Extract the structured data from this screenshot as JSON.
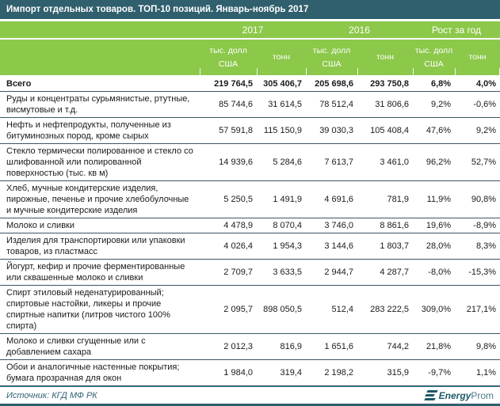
{
  "title": "Импорт отдельных товаров. ТОП-10 позиций. Январь-ноябрь 2017",
  "header": {
    "group_2017": "2017",
    "group_2016": "2016",
    "group_growth": "Рост за год",
    "sub_usd": "тыс. долл\nСША",
    "sub_tons": "тонн"
  },
  "chart_data": {
    "type": "table",
    "title": "Импорт отдельных товаров. ТОП-10 позиций. Январь-ноябрь 2017",
    "columns": [
      "",
      "2017 тыс. долл США",
      "2017 тонн",
      "2016 тыс. долл США",
      "2016 тонн",
      "Рост за год тыс. долл США",
      "Рост за год тонн"
    ],
    "totals_row_index": 0,
    "rows": [
      [
        "Всего",
        "219 764,5",
        "305 406,7",
        "205 698,6",
        "293 750,8",
        "6,8%",
        "4,0%"
      ],
      [
        "Руды и концентраты сурьмянистые, ртутные, висмутовые и т.д.",
        "85 744,6",
        "31 614,5",
        "78 512,4",
        "31 806,6",
        "9,2%",
        "-0,6%"
      ],
      [
        "Нефть и нефтепродукты, полученные из битуминозных пород, кроме сырых",
        "57 591,8",
        "115 150,9",
        "39 030,3",
        "105 408,4",
        "47,6%",
        "9,2%"
      ],
      [
        "Стекло термически полированное и стекло со шлифованной или полированной поверхностью (тыс. кв м)",
        "14 939,6",
        "5 284,6",
        "7 613,7",
        "3 461,0",
        "96,2%",
        "52,7%"
      ],
      [
        "Хлеб, мучные кондитерские изделия, пирожные, печенье и прочие хлебобулочные и мучные кондитерские изделия",
        "5 250,5",
        "1 491,9",
        "4 691,6",
        "781,9",
        "11,9%",
        "90,8%"
      ],
      [
        "Молоко и сливки",
        "4 478,9",
        "8 070,4",
        "3 746,0",
        "8 861,6",
        "19,6%",
        "-8,9%"
      ],
      [
        "Изделия для транспортировки или упаковки товаров, из пластмасс",
        "4 026,4",
        "1 954,3",
        "3 144,6",
        "1 803,7",
        "28,0%",
        "8,3%"
      ],
      [
        "Йогурт, кефир и прочие ферментированные или сквашенные молоко и сливки",
        "2 709,7",
        "3 633,5",
        "2 944,7",
        "4 287,7",
        "-8,0%",
        "-15,3%"
      ],
      [
        "Спирт этиловый неденатурированный; спиртовые настойки, ликеры и прочие спиртные напитки (литров чистого 100% спирта)",
        "2 095,7",
        "898 050,5",
        "512,4",
        "283 222,5",
        "309,0%",
        "217,1%"
      ],
      [
        "Молоко и сливки сгущенные или с добавлением сахара",
        "2 012,3",
        "816,9",
        "1 651,6",
        "744,2",
        "21,8%",
        "9,8%"
      ],
      [
        "Обои и аналогичные настенные покрытия; бумага прозрачная для окон",
        "1 984,0",
        "319,4",
        "2 198,2",
        "315,9",
        "-9,7%",
        "1,1%"
      ]
    ]
  },
  "footer": {
    "source_label": "Источник: КГД МФ РК",
    "logo_energy": "Energy",
    "logo_prom": "Prom"
  },
  "colors": {
    "header_teal": "#305F6D",
    "header_green": "#8CC84A",
    "row_line": "#3D5566",
    "logo_teal": "#1D5A68"
  }
}
